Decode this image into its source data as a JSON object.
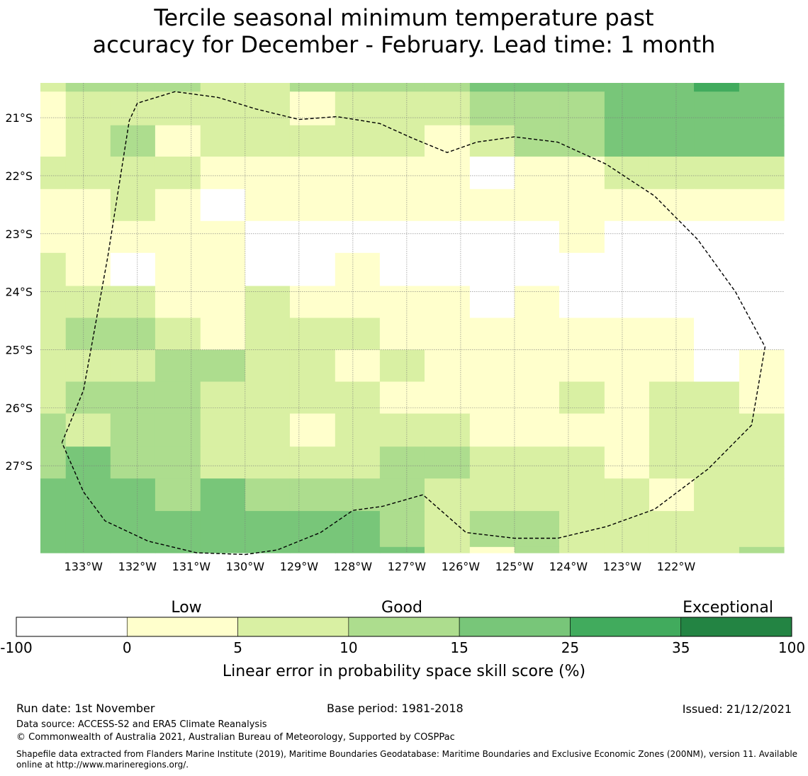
{
  "title": {
    "line1": "Tercile seasonal minimum temperature past",
    "line2": "accuracy for December - February. Lead time: 1 month"
  },
  "chart_data": {
    "type": "heatmap",
    "title": "Tercile seasonal minimum temperature past accuracy for December - February. Lead time: 1 month",
    "x_range": [
      -133.8,
      -120.0
    ],
    "y_range": [
      -28.5,
      -20.4
    ],
    "x_ticks": [
      -133,
      -132,
      -131,
      -130,
      -129,
      -128,
      -127,
      -126,
      -125,
      -124,
      -123,
      -122
    ],
    "x_tick_labels": [
      "133°W",
      "132°W",
      "131°W",
      "130°W",
      "129°W",
      "128°W",
      "127°W",
      "126°W",
      "125°W",
      "124°W",
      "123°W",
      "122°W"
    ],
    "y_ticks": [
      -21,
      -22,
      -23,
      -24,
      -25,
      -26,
      -27
    ],
    "y_tick_labels": [
      "21°S",
      "22°S",
      "23°S",
      "24°S",
      "25°S",
      "26°S",
      "27°S"
    ],
    "grid_x": [
      -133.8,
      -133.33,
      -132.5,
      -131.67,
      -130.83,
      -130,
      -129.17,
      -128.33,
      -127.5,
      -126.67,
      -125.83,
      -125,
      -124.17,
      -123.33,
      -122.5,
      -121.67,
      -120.83,
      -120
    ],
    "grid_y": [
      -20.4,
      -20.55,
      -21.13,
      -21.67,
      -22.23,
      -22.78,
      -23.33,
      -23.9,
      -24.45,
      -25.0,
      -25.55,
      -26.1,
      -26.67,
      -27.22,
      -27.78,
      -28.4,
      -28.5
    ],
    "cell_values": [
      [
        1,
        2,
        2,
        2,
        1,
        1,
        2,
        2,
        2,
        2,
        3,
        3,
        3,
        3,
        3,
        4,
        3
      ],
      [
        0,
        1,
        1,
        1,
        1,
        1,
        0,
        1,
        1,
        1,
        2,
        2,
        2,
        3,
        3,
        3,
        3
      ],
      [
        0,
        1,
        2,
        0,
        1,
        1,
        1,
        1,
        1,
        0,
        1,
        2,
        2,
        3,
        3,
        3,
        3
      ],
      [
        1,
        1,
        1,
        1,
        0,
        0,
        0,
        0,
        0,
        0,
        -1,
        0,
        0,
        1,
        1,
        1,
        1
      ],
      [
        0,
        0,
        1,
        0,
        -1,
        0,
        0,
        0,
        0,
        0,
        0,
        0,
        0,
        0,
        0,
        0,
        0
      ],
      [
        0,
        0,
        0,
        0,
        0,
        -1,
        -1,
        -1,
        -1,
        -1,
        -1,
        -1,
        0,
        -1,
        -1,
        -1,
        -1
      ],
      [
        1,
        0,
        -1,
        0,
        0,
        -1,
        -1,
        0,
        -1,
        -1,
        -1,
        -1,
        -1,
        -1,
        -1,
        -1,
        -1
      ],
      [
        1,
        1,
        1,
        0,
        0,
        1,
        0,
        0,
        0,
        0,
        -1,
        0,
        -1,
        -1,
        -1,
        -1,
        -1
      ],
      [
        1,
        2,
        2,
        1,
        0,
        1,
        1,
        1,
        0,
        0,
        0,
        0,
        0,
        0,
        0,
        -1,
        -1
      ],
      [
        1,
        1,
        1,
        2,
        2,
        1,
        1,
        0,
        1,
        0,
        0,
        0,
        0,
        0,
        0,
        -1,
        0
      ],
      [
        1,
        2,
        2,
        2,
        1,
        1,
        1,
        1,
        0,
        0,
        0,
        0,
        1,
        0,
        1,
        1,
        0
      ],
      [
        2,
        1,
        2,
        2,
        1,
        1,
        0,
        1,
        1,
        1,
        0,
        0,
        0,
        0,
        1,
        1,
        1
      ],
      [
        2,
        3,
        2,
        2,
        1,
        1,
        1,
        1,
        2,
        2,
        1,
        1,
        1,
        0,
        1,
        1,
        1
      ],
      [
        3,
        3,
        3,
        2,
        3,
        2,
        2,
        2,
        2,
        1,
        1,
        1,
        1,
        1,
        0,
        1,
        1
      ],
      [
        3,
        3,
        3,
        3,
        3,
        3,
        3,
        3,
        2,
        1,
        2,
        2,
        1,
        1,
        1,
        1,
        1
      ],
      [
        3,
        3,
        3,
        3,
        3,
        3,
        3,
        3,
        3,
        1,
        0,
        2,
        1,
        1,
        1,
        1,
        2
      ]
    ],
    "cell_value_legend": "-1 = below 0, 0 = 0 to 5, 1 = 5 to 10, 2 = 10 to 15, 3 = 15 to 25, 4 = 25 to 35",
    "boundary": [
      [
        -133.4,
        -26.6
      ],
      [
        -133.0,
        -25.7
      ],
      [
        -132.55,
        -23.4
      ],
      [
        -132.15,
        -21.05
      ],
      [
        -132.0,
        -20.75
      ],
      [
        -131.3,
        -20.55
      ],
      [
        -130.5,
        -20.65
      ],
      [
        -129.8,
        -20.85
      ],
      [
        -129.0,
        -21.03
      ],
      [
        -128.3,
        -20.98
      ],
      [
        -127.5,
        -21.1
      ],
      [
        -126.9,
        -21.35
      ],
      [
        -126.25,
        -21.6
      ],
      [
        -125.7,
        -21.42
      ],
      [
        -125.0,
        -21.33
      ],
      [
        -124.2,
        -21.42
      ],
      [
        -123.3,
        -21.8
      ],
      [
        -122.4,
        -22.35
      ],
      [
        -121.6,
        -23.1
      ],
      [
        -120.9,
        -24.0
      ],
      [
        -120.35,
        -24.95
      ],
      [
        -120.6,
        -26.3
      ],
      [
        -121.4,
        -27.05
      ],
      [
        -122.4,
        -27.75
      ],
      [
        -123.3,
        -28.05
      ],
      [
        -124.2,
        -28.25
      ],
      [
        -125.0,
        -28.25
      ],
      [
        -125.9,
        -28.15
      ],
      [
        -126.7,
        -27.5
      ],
      [
        -127.45,
        -27.7
      ],
      [
        -128.0,
        -27.77
      ],
      [
        -128.6,
        -28.15
      ],
      [
        -129.4,
        -28.45
      ],
      [
        -130.0,
        -28.53
      ],
      [
        -130.9,
        -28.5
      ],
      [
        -131.8,
        -28.3
      ],
      [
        -132.6,
        -27.95
      ],
      [
        -133.0,
        -27.45
      ],
      [
        -133.4,
        -26.6
      ]
    ],
    "colorbar": {
      "boundaries": [
        "-100",
        "0",
        "5",
        "10",
        "15",
        "25",
        "35",
        "100"
      ],
      "colors": [
        "#ffffff",
        "#ffffcc",
        "#d9f0a3",
        "#addd8e",
        "#78c679",
        "#41ab5d",
        "#238443"
      ],
      "category_labels": [
        "Low",
        "Good",
        "Exceptional"
      ],
      "label": "Linear error in probability space skill score (%)"
    }
  },
  "footer": {
    "run_date": "Run date: 1st November",
    "base_period": "Base period: 1981-2018",
    "issued": "Issued: 21/12/2021",
    "data_source": "Data source: ACCESS-S2 and ERA5 Climate Reanalysis",
    "copyright": "© Commonwealth of Australia 2021, Australian Bureau of Meteorology, Supported by COSPPac",
    "shapefile_note": "Shapefile data extracted from Flanders Marine Institute (2019), Maritime Boundaries Geodatabase: Maritime Boundaries and Exclusive Economic Zones (200NM), version 11. Available online at http://www.marineregions.org/."
  }
}
